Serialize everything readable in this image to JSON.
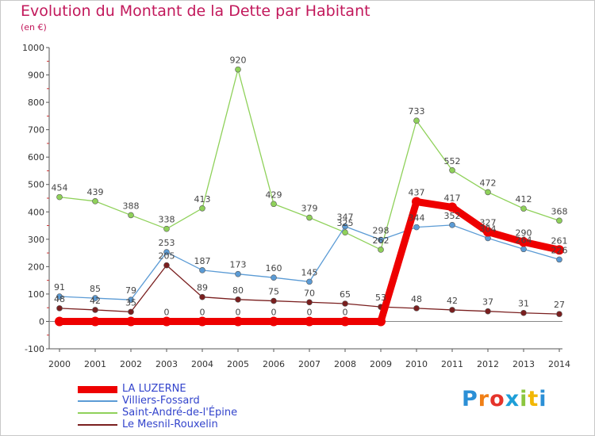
{
  "title": "Evolution du Montant de la Dette par Habitant",
  "subtitle": "(en €)",
  "logo": {
    "text": "Proxiti",
    "letters": [
      "P",
      "r",
      "o",
      "x",
      "i",
      "t",
      "i"
    ],
    "colors": [
      "#2b8fd6",
      "#f07f16",
      "#e5332a",
      "#1e9fd8",
      "#8cc63f",
      "#f2b705",
      "#2b8fd6"
    ]
  },
  "chart_data": {
    "type": "line",
    "title": "Evolution du Montant de la Dette par Habitant",
    "ylabel": "(en €)",
    "x": [
      2000,
      2001,
      2002,
      2003,
      2004,
      2005,
      2006,
      2007,
      2008,
      2009,
      2010,
      2011,
      2012,
      2013,
      2014
    ],
    "ylim": [
      -100,
      1000
    ],
    "yticks": [
      -100,
      0,
      100,
      200,
      300,
      400,
      500,
      600,
      700,
      800,
      900,
      1000
    ],
    "grid": false,
    "legend_position": "bottom-left",
    "series": [
      {
        "name": "LA LUZERNE",
        "color": "#ee0000",
        "values": [
          0,
          0,
          0,
          0,
          0,
          0,
          0,
          0,
          0,
          0,
          437,
          417,
          327,
          290,
          261
        ],
        "labels": [
          "",
          "",
          "",
          "0",
          "0",
          "0",
          "0",
          "0",
          "0",
          "",
          "437",
          "417",
          "327",
          "290",
          "261"
        ]
      },
      {
        "name": "Villiers-Fossard",
        "color": "#5b9bd5",
        "values": [
          91,
          85,
          79,
          253,
          187,
          173,
          160,
          145,
          347,
          298,
          344,
          352,
          304,
          264,
          226
        ],
        "labels": [
          "91",
          "85",
          "79",
          "253",
          "187",
          "173",
          "160",
          "145",
          "347",
          "298",
          "344",
          "352",
          "304",
          "264",
          "226"
        ]
      },
      {
        "name": "Saint-André-de-l'Épine",
        "color": "#8fd15a",
        "values": [
          454,
          439,
          388,
          338,
          413,
          920,
          429,
          379,
          325,
          262,
          733,
          552,
          472,
          412,
          368
        ],
        "labels": [
          "454",
          "439",
          "388",
          "338",
          "413",
          "920",
          "429",
          "379",
          "325",
          "262",
          "733",
          "552",
          "472",
          "412",
          "368"
        ]
      },
      {
        "name": "Le Mesnil-Rouxelin",
        "color": "#7a1f1f",
        "values": [
          48,
          42,
          35,
          205,
          89,
          80,
          75,
          70,
          65,
          53,
          48,
          42,
          37,
          31,
          27
        ],
        "labels": [
          "48",
          "42",
          "35",
          "205",
          "89",
          "80",
          "75",
          "70",
          "65",
          "53",
          "48",
          "42",
          "37",
          "31",
          "27"
        ]
      }
    ]
  }
}
